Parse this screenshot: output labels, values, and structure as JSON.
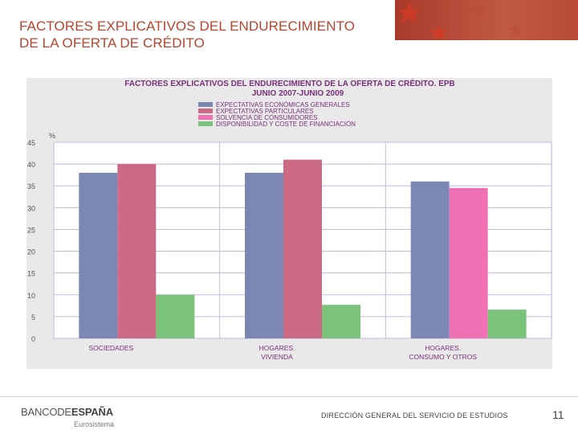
{
  "slide": {
    "title_line1": "FACTORES EXPLICATIVOS DEL ENDURECIMIENTO",
    "title_line2": "DE LA OFERTA DE CRÉDITO"
  },
  "footer": {
    "brand_part1": "BANCODE",
    "brand_part2": "ESPAÑA",
    "brand_sub": "Eurosistema",
    "department": "DIRECCIÓN GENERAL DEL SERVICIO DE ESTUDIOS",
    "page_number": "11"
  },
  "colors": {
    "title": "#b5452e",
    "series": [
      "#7b88b4",
      "#cc6a86",
      "#f070b4",
      "#7bc27b"
    ],
    "grid": "#c8b8dc",
    "chart_title": "#7a2e7a"
  },
  "chart_data": {
    "type": "bar",
    "title_line1": "FACTORES EXPLICATIVOS DEL ENDURECIMIENTO DE LA OFERTA DE CRÉDITO. EPB",
    "title_line2": "JUNIO 2007-JUNIO 2009",
    "ylabel": "%",
    "ylim": [
      0,
      45
    ],
    "yticks": [
      0,
      5,
      10,
      15,
      20,
      25,
      30,
      35,
      40,
      45
    ],
    "categories": [
      [
        "SOCIEDADES"
      ],
      [
        "HOGARES.",
        "VIVIENDA"
      ],
      [
        "HOGARES.",
        "CONSUMO Y OTROS"
      ]
    ],
    "series": [
      {
        "name": "EXPECTATIVAS ECONÓMICAS GENERALES",
        "values": [
          38,
          38,
          36
        ]
      },
      {
        "name": "EXPECTATIVAS PARTICULARES",
        "values": [
          40,
          41,
          null
        ]
      },
      {
        "name": "SOLVENCIA DE CONSUMIDORES",
        "values": [
          null,
          null,
          34.5
        ]
      },
      {
        "name": "DISPONIBILIDAD Y COSTE DE FINANCIACIÓN",
        "values": [
          10,
          7.7,
          6.6
        ]
      }
    ]
  }
}
